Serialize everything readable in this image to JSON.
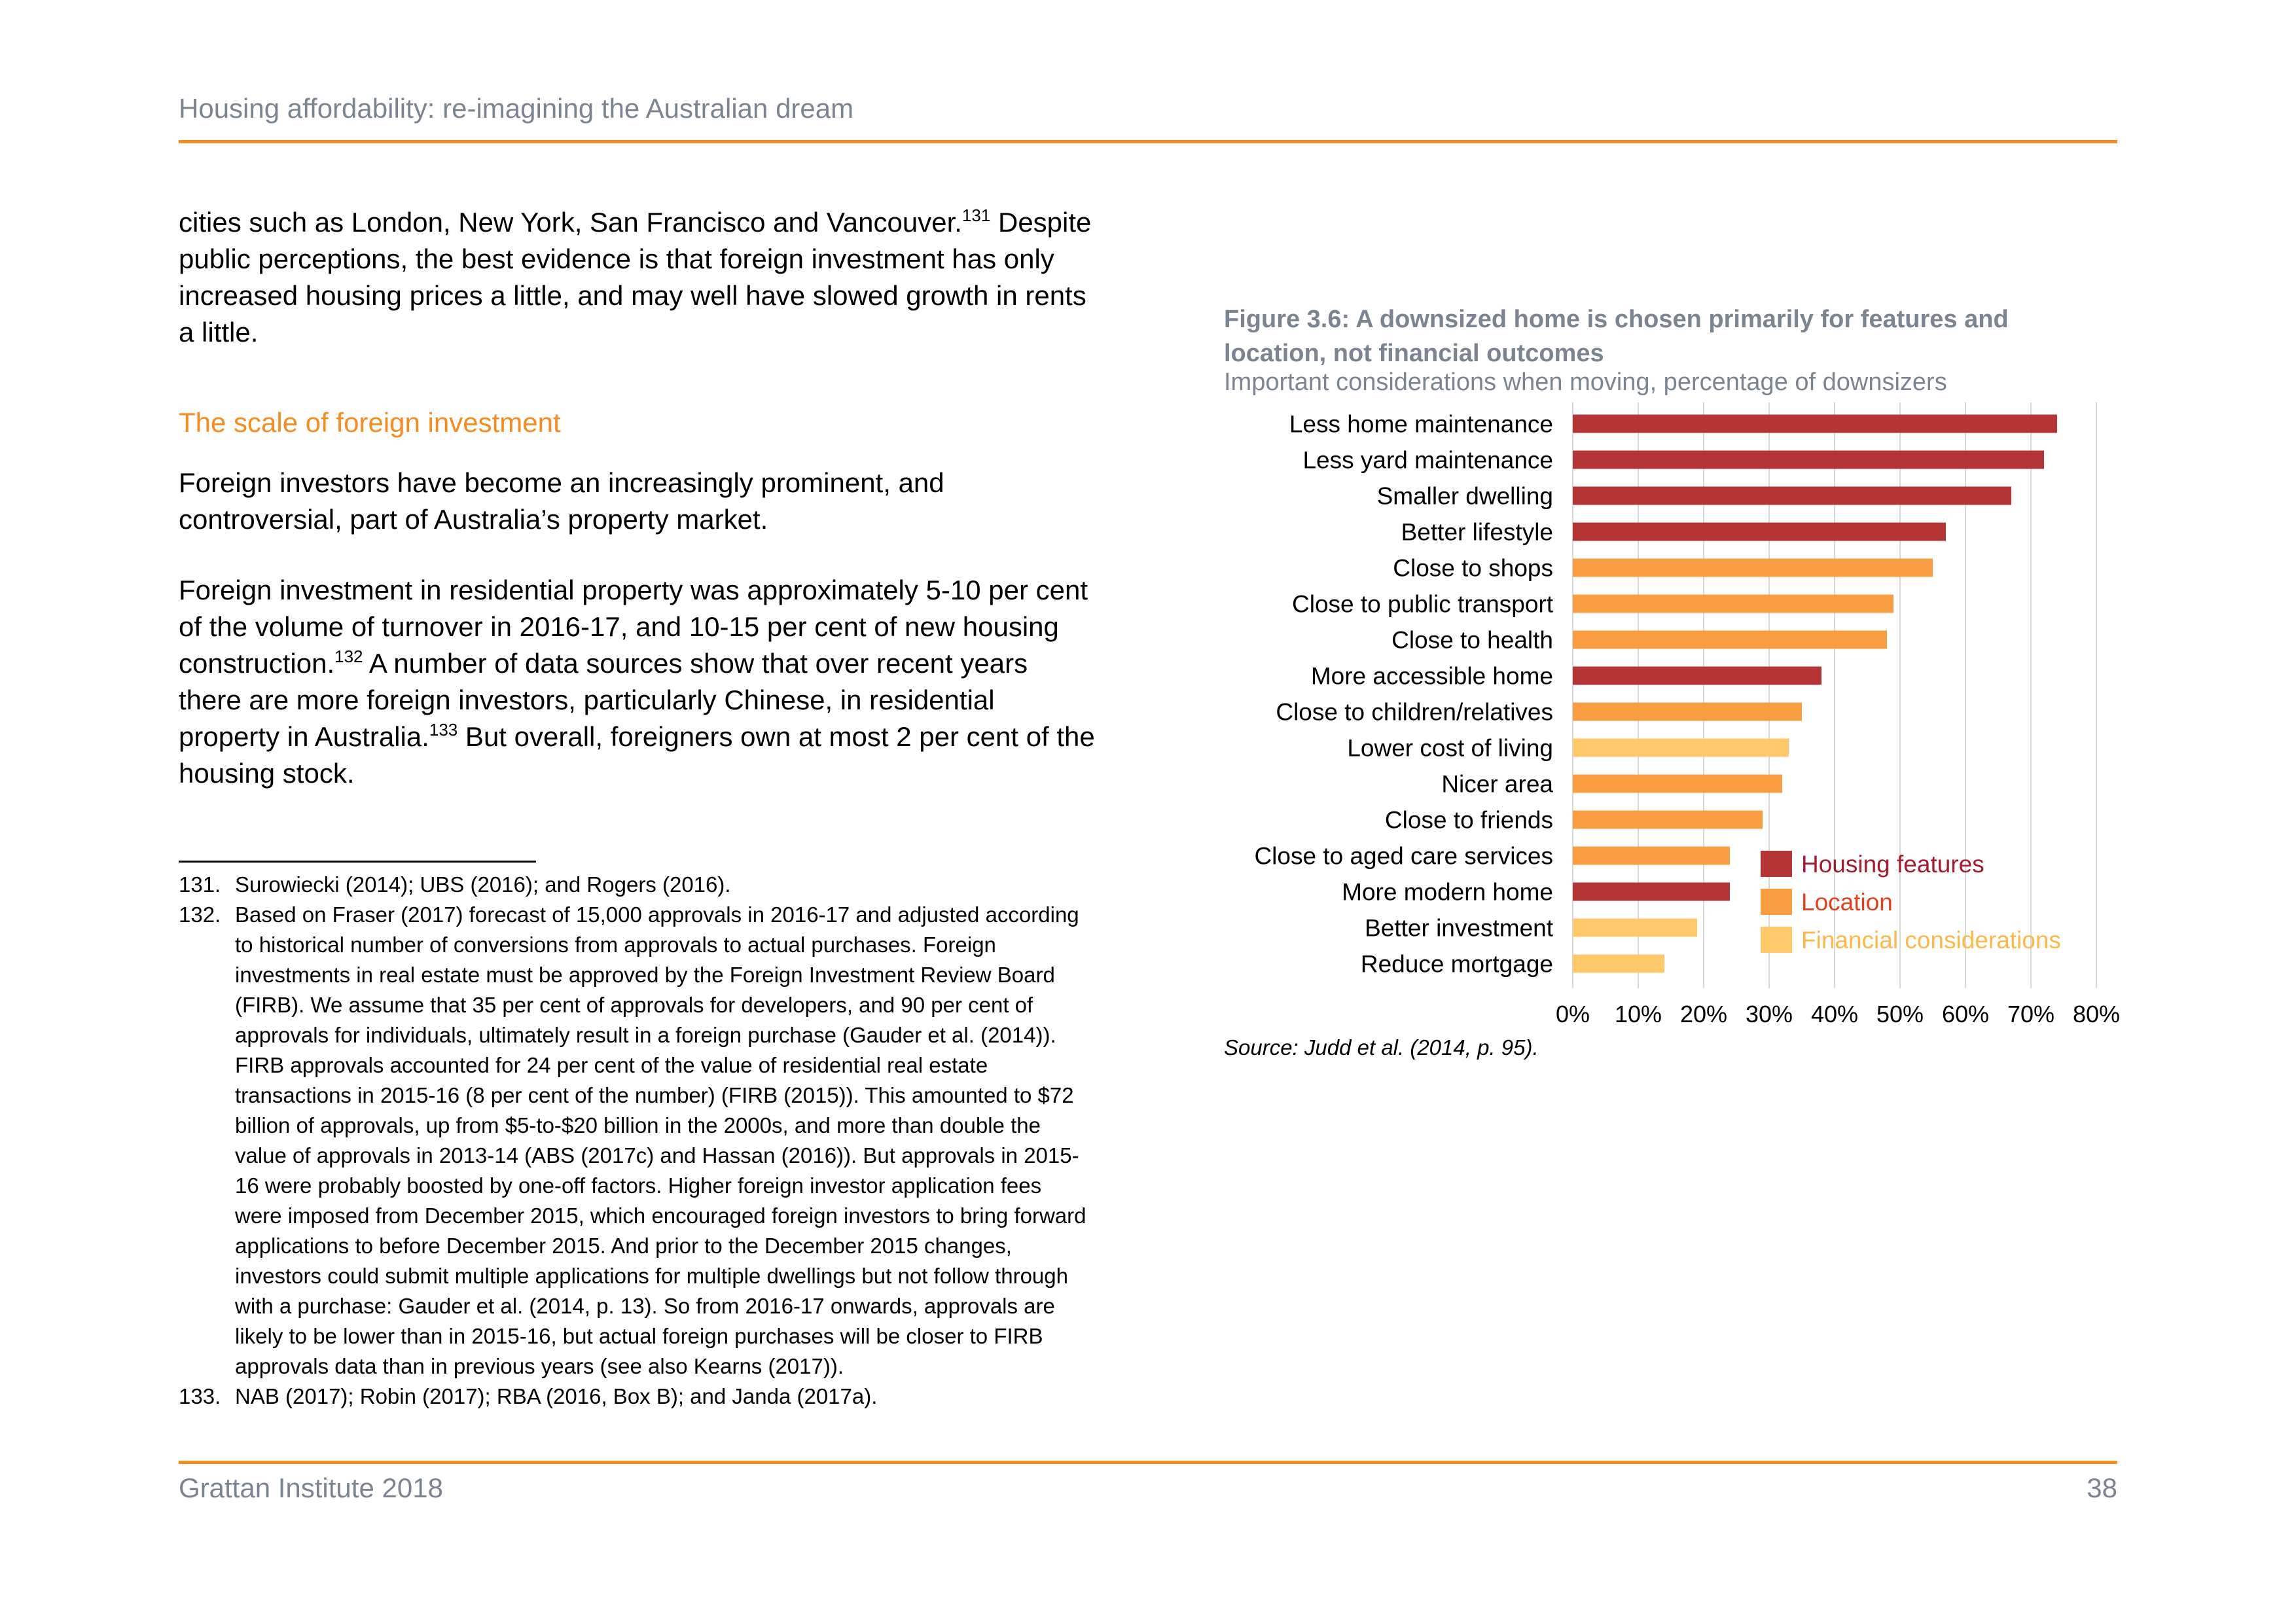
{
  "header": {
    "running_title": "Housing affordability: re-imagining the Australian dream"
  },
  "body": {
    "p1": {
      "t1": "cities such as London, New York, San Francisco and Vancouver.",
      "s1": "131",
      "t2": " Despite public perceptions, the best evidence is that foreign investment has only increased housing prices a little, and may well have slowed growth in rents a little."
    },
    "section_heading": "The scale of foreign investment",
    "p2": "Foreign investors have become an increasingly prominent, and controversial, part of Australia’s property market.",
    "p3": {
      "t1": "Foreign investment in residential property was approximately 5-10 per cent of the volume of turnover in 2016-17, and 10-15 per cent of new housing construction.",
      "s1": "132",
      "t2": " A number of data sources show that over recent years there are more foreign investors, particularly Chinese, in residential property in Australia.",
      "s2": "133",
      "t3": " But overall, foreigners own at most 2 per cent of the housing stock."
    }
  },
  "footnotes": [
    {
      "num": "131.",
      "text": "Surowiecki (2014); UBS (2016); and Rogers (2016)."
    },
    {
      "num": "132.",
      "text": "Based on Fraser (2017) forecast of 15,000 approvals in 2016-17 and adjusted according to historical number of conversions from approvals to actual purchases. Foreign investments in real estate must be approved by the Foreign Investment Review Board (FIRB). We assume that 35 per cent of approvals for developers, and 90 per cent of approvals for individuals, ultimately result in a foreign purchase (Gauder et al. (2014)). FIRB approvals accounted for 24 per cent of the value of residential real estate transactions in 2015-16 (8 per cent of the number) (FIRB (2015)). This amounted to $72 billion of approvals, up from $5-to-$20 billion in the 2000s, and more than double the value of approvals in 2013-14 (ABS (2017c) and Hassan (2016)). But approvals in 2015-16 were probably boosted by one-off factors. Higher foreign investor application fees were imposed from December 2015, which encouraged foreign investors to bring forward applications to before December 2015. And prior to the December 2015 changes, investors could submit multiple applications for multiple dwellings but not follow through with a purchase: Gauder et al. (2014, p. 13). So from 2016-17 onwards, approvals are likely to be lower than in 2015-16, but actual foreign purchases will be closer to FIRB approvals data than in previous years (see also Kearns (2017))."
    },
    {
      "num": "133.",
      "text": "NAB (2017); Robin (2017); RBA (2016, Box B); and Janda (2017a)."
    }
  ],
  "figure": {
    "title": "Figure 3.6: A downsized home is chosen primarily for features and location, not financial outcomes",
    "subtitle": "Important considerations when moving, percentage of downsizers",
    "source": "Source: Judd et al. (2014, p. 95)."
  },
  "chart_data": {
    "type": "bar",
    "orientation": "horizontal",
    "categories": [
      "Less home maintenance",
      "Less yard maintenance",
      "Smaller dwelling",
      "Better lifestyle",
      "Close to shops",
      "Close to public transport",
      "Close to health",
      "More accessible home",
      "Close to children/relatives",
      "Lower cost of living",
      "Nicer area",
      "Close to friends",
      "Close to aged care services",
      "More modern home",
      "Better investment",
      "Reduce mortgage"
    ],
    "values": [
      74,
      72,
      67,
      57,
      55,
      49,
      48,
      38,
      35,
      33,
      32,
      29,
      24,
      24,
      19,
      14
    ],
    "groups": [
      "Housing features",
      "Housing features",
      "Housing features",
      "Housing features",
      "Location",
      "Location",
      "Location",
      "Housing features",
      "Location",
      "Financial considerations",
      "Location",
      "Location",
      "Location",
      "Housing features",
      "Financial considerations",
      "Financial considerations"
    ],
    "legend": [
      {
        "name": "Housing features",
        "color": "#b33536"
      },
      {
        "name": "Location",
        "color": "#f89d41"
      },
      {
        "name": "Financial considerations",
        "color": "#ffc96b"
      }
    ],
    "legend_text_colors": {
      "Housing features": "#a6192e",
      "Location": "#e5401d",
      "Financial considerations": "#fdb74a"
    },
    "xlim": [
      0,
      80
    ],
    "xticks": [
      "0%",
      "10%",
      "20%",
      "30%",
      "40%",
      "50%",
      "60%",
      "70%",
      "80%"
    ],
    "grid": "vertical",
    "legend_position": "lower-right"
  },
  "footer": {
    "left": "Grattan Institute 2018",
    "page": "38"
  }
}
